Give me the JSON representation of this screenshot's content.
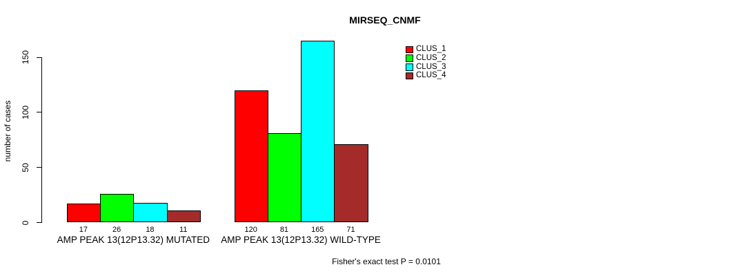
{
  "chart_data": {
    "type": "bar",
    "title": "MIRSEQ_CNMF",
    "ylabel": "number of cases",
    "xlabel": "",
    "categories": [
      "AMP PEAK 13(12P13.32) MUTATED",
      "AMP PEAK 13(12P13.32) WILD-TYPE"
    ],
    "series": [
      {
        "name": "CLUS_1",
        "color": "#ff0000",
        "values": [
          17,
          120
        ]
      },
      {
        "name": "CLUS_2",
        "color": "#00ff00",
        "values": [
          26,
          81
        ]
      },
      {
        "name": "CLUS_3",
        "color": "#00ffff",
        "values": [
          18,
          165
        ]
      },
      {
        "name": "CLUS_4",
        "color": "#a52a2a",
        "values": [
          11,
          71
        ]
      }
    ],
    "yticks": [
      0,
      50,
      100,
      150
    ],
    "ylim": [
      0,
      175
    ],
    "grid": false,
    "bar_value_labels": true,
    "legend": {
      "position": "top-right",
      "entries": [
        "CLUS_1",
        "CLUS_2",
        "CLUS_3",
        "CLUS_4"
      ]
    },
    "annotation": "Fisher's exact test P = 0.0101"
  }
}
